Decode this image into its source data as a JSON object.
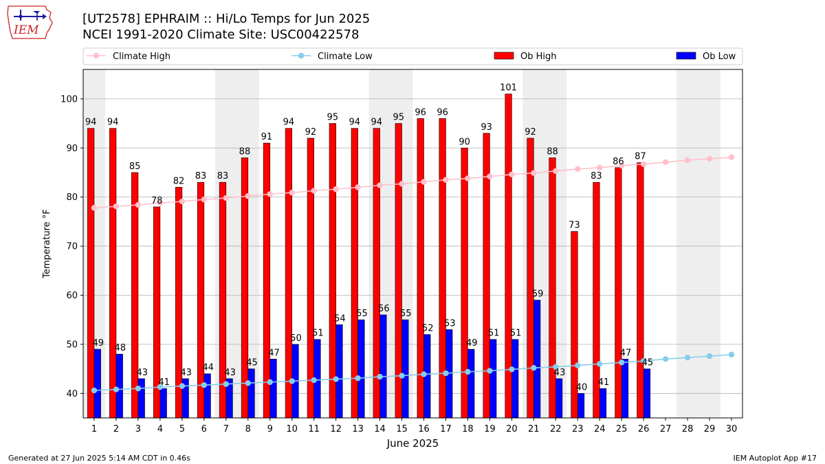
{
  "title_line1": "[UT2578] EPHRAIM :: Hi/Lo Temps for Jun 2025",
  "title_line2": "NCEI 1991-2020 Climate Site: USC00422578",
  "logo_text": "IEM",
  "footer_left": "Generated at 27 Jun 2025 5:14 AM CDT in 0.46s",
  "footer_right": "IEM Autoplot App #17",
  "colors": {
    "ob_high": "#ff0000",
    "ob_low": "#0000ff",
    "climate_high": "#ffc0cb",
    "climate_low": "#87ceeb",
    "weekend_band": "#eeeeee",
    "grid": "#b0b0b0",
    "logo_red": "#cc2222",
    "logo_blue": "#1a1aa0"
  },
  "chart_data": {
    "type": "bar",
    "xlabel": "June 2025",
    "ylabel": "Temperature °F",
    "ylim": [
      35,
      106
    ],
    "xlim": [
      0.5,
      30.5
    ],
    "yticks": [
      40,
      50,
      60,
      70,
      80,
      90,
      100
    ],
    "x": [
      1,
      2,
      3,
      4,
      5,
      6,
      7,
      8,
      9,
      10,
      11,
      12,
      13,
      14,
      15,
      16,
      17,
      18,
      19,
      20,
      21,
      22,
      23,
      24,
      25,
      26,
      27,
      28,
      29,
      30
    ],
    "weekend_bands": [
      [
        1,
        1
      ],
      [
        7,
        8
      ],
      [
        14,
        15
      ],
      [
        21,
        22
      ],
      [
        28,
        29
      ]
    ],
    "grid": "horizontal",
    "legend_position": "top",
    "series": [
      {
        "name": "Climate High",
        "kind": "line",
        "values": [
          77.8,
          78.1,
          78.4,
          78.8,
          79.1,
          79.5,
          79.8,
          80.2,
          80.6,
          80.9,
          81.3,
          81.6,
          82.0,
          82.4,
          82.7,
          83.1,
          83.5,
          83.8,
          84.2,
          84.6,
          84.9,
          85.3,
          85.7,
          86.0,
          86.4,
          86.7,
          87.1,
          87.5,
          87.8,
          88.1
        ]
      },
      {
        "name": "Climate Low",
        "kind": "line",
        "values": [
          40.6,
          40.8,
          41.0,
          41.3,
          41.5,
          41.7,
          41.9,
          42.1,
          42.3,
          42.5,
          42.7,
          42.9,
          43.1,
          43.4,
          43.6,
          43.9,
          44.1,
          44.4,
          44.6,
          44.9,
          45.2,
          45.4,
          45.7,
          46.0,
          46.3,
          46.6,
          47.0,
          47.3,
          47.6,
          47.9
        ]
      },
      {
        "name": "Ob High",
        "kind": "bar",
        "values": [
          94,
          94,
          85,
          78,
          82,
          83,
          83,
          88,
          91,
          94,
          92,
          95,
          94,
          94,
          95,
          96,
          96,
          90,
          93,
          101,
          92,
          88,
          73,
          83,
          86,
          87,
          null,
          null,
          null,
          null
        ]
      },
      {
        "name": "Ob Low",
        "kind": "bar",
        "values": [
          49,
          48,
          43,
          41,
          43,
          44,
          43,
          45,
          47,
          50,
          51,
          54,
          55,
          56,
          55,
          52,
          53,
          49,
          51,
          51,
          59,
          43,
          40,
          41,
          47,
          45,
          null,
          null,
          null,
          null
        ]
      }
    ]
  }
}
